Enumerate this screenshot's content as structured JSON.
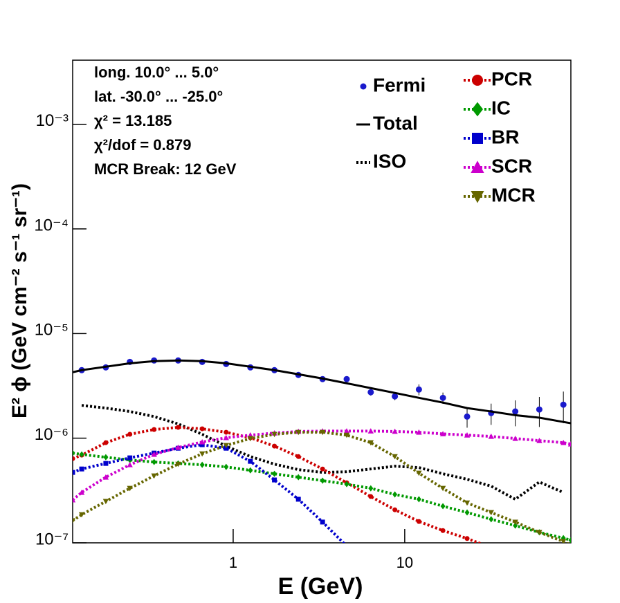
{
  "chart_data": {
    "type": "line",
    "annotations": [
      "long. 10.0° ... 5.0°",
      "lat. -30.0° ... -25.0°",
      "χ² = 13.185",
      "χ²/dof = 0.879",
      "MCR Break: 12 GeV"
    ],
    "x_label": "E (GeV)",
    "y_label": "E² ϕ (GeV cm⁻² s⁻¹ sr⁻¹)",
    "xlog": true,
    "ylog": true,
    "xlim": [
      0.116,
      93
    ],
    "ylim": [
      1e-07,
      0.0041
    ],
    "xticks": [
      1,
      10
    ],
    "yticks": [
      {
        "value": 1e-07,
        "label": "10⁻⁷"
      },
      {
        "value": 1e-06,
        "label": "10⁻⁶"
      },
      {
        "value": 1e-05,
        "label": "10⁻⁵"
      },
      {
        "value": 0.0001,
        "label": "10⁻⁴"
      },
      {
        "value": 0.001,
        "label": "10⁻³"
      }
    ],
    "x": [
      0.116,
      0.131,
      0.181,
      0.25,
      0.346,
      0.478,
      0.66,
      0.91,
      1.26,
      1.74,
      2.4,
      3.32,
      4.59,
      6.34,
      8.76,
      12.1,
      16.7,
      23.1,
      31.9,
      44.1,
      60.9,
      84.1,
      93
    ],
    "series": [
      {
        "name": "Fermi",
        "color": "#1a1acc",
        "style": "none",
        "marker": "circle",
        "values": [
          null,
          4.47e-06,
          4.75e-06,
          5.36e-06,
          5.53e-06,
          5.53e-06,
          5.36e-06,
          5.12e-06,
          4.75e-06,
          4.47e-06,
          4.02e-06,
          3.67e-06,
          3.67e-06,
          2.75e-06,
          2.51e-06,
          2.92e-06,
          2.43e-06,
          1.61e-06,
          1.74e-06,
          1.8e-06,
          1.88e-06,
          2.09e-06,
          null
        ],
        "errors": [
          null,
          1e-07,
          1e-07,
          1e-07,
          1e-07,
          1e-07,
          1e-07,
          1e-07,
          1e-07,
          1e-07,
          1e-07,
          1e-07,
          1.5e-07,
          2e-07,
          2e-07,
          3.5e-07,
          3e-07,
          3.5e-07,
          4e-07,
          5e-07,
          6e-07,
          7e-07,
          null
        ]
      },
      {
        "name": "Total",
        "color": "#000000",
        "style": "solid",
        "marker": "none",
        "values": [
          4.27e-06,
          4.47e-06,
          4.82e-06,
          5.2e-06,
          5.45e-06,
          5.53e-06,
          5.45e-06,
          5.2e-06,
          4.82e-06,
          4.47e-06,
          4.08e-06,
          3.72e-06,
          3.35e-06,
          3.01e-06,
          2.71e-06,
          2.43e-06,
          2.19e-06,
          1.94e-06,
          1.8e-06,
          1.66e-06,
          1.57e-06,
          1.43e-06,
          1.39e-06
        ]
      },
      {
        "name": "ISO",
        "color": "#000000",
        "style": "dotted",
        "marker": "none",
        "values": [
          null,
          2.06e-06,
          1.94e-06,
          1.8e-06,
          1.61e-06,
          1.37e-06,
          1.09e-06,
          8.4e-07,
          6.68e-07,
          5.65e-07,
          5.01e-07,
          4.71e-07,
          4.78e-07,
          5.08e-07,
          5.4e-07,
          5.24e-07,
          4.57e-07,
          4.05e-07,
          3.48e-07,
          2.61e-07,
          3.81e-07,
          3.03e-07,
          null
        ]
      },
      {
        "name": "PCR",
        "color": "#cc0000",
        "style": "dotted",
        "marker": "circle",
        "values": [
          6.38e-07,
          6.89e-07,
          9.06e-07,
          1.09e-06,
          1.21e-06,
          1.27e-06,
          1.23e-06,
          1.14e-06,
          1.01e-06,
          8.4e-07,
          6.68e-07,
          5.08e-07,
          3.75e-07,
          2.77e-07,
          2.07e-07,
          1.6e-07,
          1.31e-07,
          1.1e-07,
          9e-08,
          null,
          null,
          null,
          null
        ]
      },
      {
        "name": "IC",
        "color": "#009900",
        "style": "dotted",
        "marker": "diamond",
        "values": [
          7.21e-07,
          7e-07,
          6.58e-07,
          6.19e-07,
          5.92e-07,
          5.74e-07,
          5.57e-07,
          5.32e-07,
          4.93e-07,
          4.57e-07,
          4.24e-07,
          3.93e-07,
          3.64e-07,
          3.32e-07,
          2.9e-07,
          2.61e-07,
          2.24e-07,
          1.95e-07,
          1.68e-07,
          1.46e-07,
          1.26e-07,
          1.11e-07,
          1.06e-07
        ]
      },
      {
        "name": "BR",
        "color": "#0000cc",
        "style": "dotted",
        "marker": "square",
        "values": [
          4.71e-07,
          5.08e-07,
          5.74e-07,
          6.49e-07,
          7.21e-07,
          8.02e-07,
          8.66e-07,
          8.02e-07,
          6.01e-07,
          3.99e-07,
          2.61e-07,
          1.58e-07,
          9.3e-08,
          null,
          null,
          null,
          null,
          null,
          null,
          null,
          null,
          null,
          null
        ]
      },
      {
        "name": "SCR",
        "color": "#cc00cc",
        "style": "dotted",
        "marker": "triangle-up",
        "values": [
          2.57e-07,
          3.03e-07,
          4.24e-07,
          5.57e-07,
          7e-07,
          8.15e-07,
          9.2e-07,
          1.01e-06,
          1.07e-06,
          1.12e-06,
          1.16e-06,
          1.17e-06,
          1.17e-06,
          1.17e-06,
          1.16e-06,
          1.14e-06,
          1.1e-06,
          1.07e-06,
          1.04e-06,
          9.93e-07,
          9.48e-07,
          9.06e-07,
          8.79e-07
        ]
      },
      {
        "name": "MCR",
        "color": "#666600",
        "style": "dotted",
        "marker": "triangle-down",
        "values": [
          1.63e-07,
          1.86e-07,
          2.49e-07,
          3.32e-07,
          4.37e-07,
          5.65e-07,
          7.1e-07,
          8.53e-07,
          9.93e-07,
          1.09e-06,
          1.14e-06,
          1.14e-06,
          1.07e-06,
          9.06e-07,
          6.68e-07,
          4.64e-07,
          3.32e-07,
          2.41e-07,
          1.95e-07,
          1.58e-07,
          1.26e-07,
          1.03e-07,
          9.5e-08
        ]
      }
    ]
  }
}
